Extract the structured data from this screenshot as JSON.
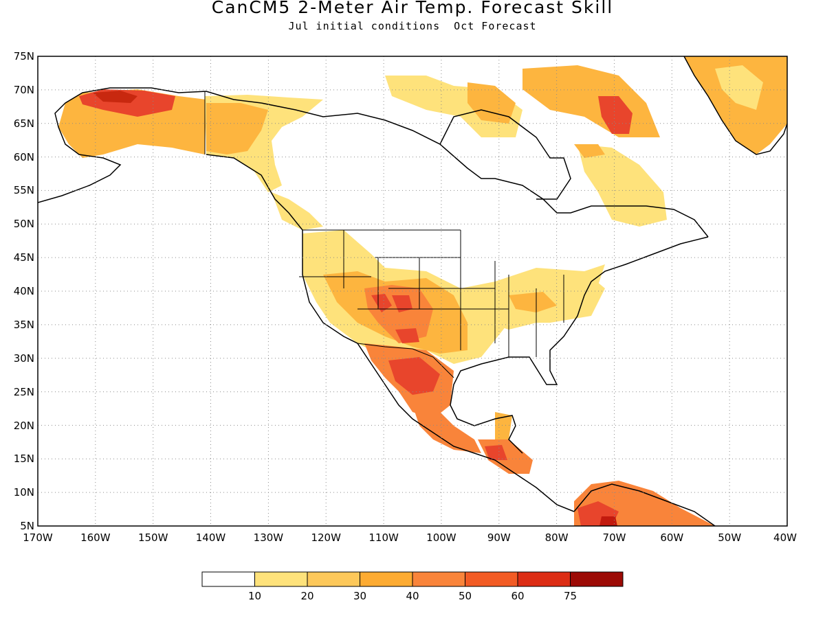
{
  "title": "CanCM5 2-Meter Air Temp. Forecast Skill",
  "subtitle": "Jul initial conditions  Oct Forecast",
  "map": {
    "projection": "latitude-longitude",
    "lon_range": [
      -170,
      -40
    ],
    "lat_range": [
      5,
      75
    ],
    "grid": "dotted",
    "lat_ticks": [
      "5N",
      "10N",
      "15N",
      "20N",
      "25N",
      "30N",
      "35N",
      "40N",
      "45N",
      "50N",
      "55N",
      "60N",
      "65N",
      "70N",
      "75N"
    ],
    "lon_ticks": [
      "170W",
      "160W",
      "150W",
      "140W",
      "130W",
      "120W",
      "110W",
      "100W",
      "90W",
      "80W",
      "70W",
      "60W",
      "50W",
      "40W"
    ],
    "land_outline_color": "#000000",
    "skill_regions": [
      {
        "name": "alaska-north-slope",
        "level": 50,
        "color": "#e8452c"
      },
      {
        "name": "alaska-interior",
        "level": 30,
        "color": "#fdb53f"
      },
      {
        "name": "yukon-bc-coast",
        "level": 20,
        "color": "#fee27b"
      },
      {
        "name": "canadian-arctic-islands",
        "level": 30,
        "color": "#fdb53f"
      },
      {
        "name": "baffin-island",
        "level": 50,
        "color": "#e8452c"
      },
      {
        "name": "greenland",
        "level": 30,
        "color": "#fdb53f"
      },
      {
        "name": "labrador-quebec",
        "level": 20,
        "color": "#fee27b"
      },
      {
        "name": "us-southwest",
        "level": 40,
        "color": "#f9843a"
      },
      {
        "name": "four-corners",
        "level": 50,
        "color": "#e8452c"
      },
      {
        "name": "great-plains-south",
        "level": 30,
        "color": "#fdb53f"
      },
      {
        "name": "ohio-valley",
        "level": 20,
        "color": "#fee27b"
      },
      {
        "name": "northern-mexico",
        "level": 50,
        "color": "#e8452c"
      },
      {
        "name": "southern-mexico",
        "level": 40,
        "color": "#f9843a"
      },
      {
        "name": "central-america",
        "level": 50,
        "color": "#e8452c"
      },
      {
        "name": "venezuela-colombia",
        "level": 50,
        "color": "#e8452c"
      }
    ]
  },
  "colorbar": {
    "labels": [
      "10",
      "20",
      "30",
      "40",
      "50",
      "60",
      "75"
    ],
    "colors": [
      "#ffffff",
      "#fee27b",
      "#fdc85a",
      "#fdab32",
      "#f9843a",
      "#f25b24",
      "#dc2d14",
      "#c21a0e",
      "#9c0a05"
    ]
  }
}
